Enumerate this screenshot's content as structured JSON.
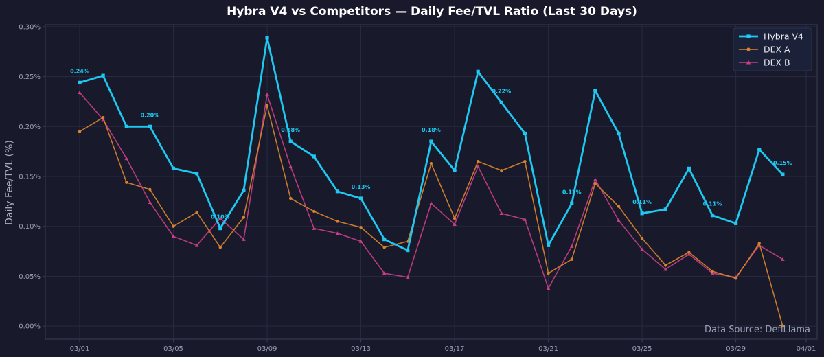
{
  "chart_data": {
    "type": "line",
    "title": "Hybra V4 vs Competitors — Daily Fee/TVL Ratio (Last 30 Days)",
    "xlabel": "",
    "ylabel": "Daily Fee/TVL (%)",
    "x_tick_labels": [
      "03/01",
      "03/05",
      "03/09",
      "03/13",
      "03/17",
      "03/21",
      "03/25",
      "03/29",
      "04/01"
    ],
    "y_tick_labels": [
      "0.00%",
      "0.05%",
      "0.10%",
      "0.15%",
      "0.20%",
      "0.25%",
      "0.30%"
    ],
    "ylim": [
      -0.013,
      0.302
    ],
    "x_domain": [
      "03/01",
      "04/01"
    ],
    "grid": true,
    "legend_position": "top-right",
    "x": [
      "03/01",
      "03/02",
      "03/03",
      "03/04",
      "03/05",
      "03/06",
      "03/07",
      "03/08",
      "03/09",
      "03/10",
      "03/11",
      "03/12",
      "03/13",
      "03/14",
      "03/15",
      "03/16",
      "03/17",
      "03/18",
      "03/19",
      "03/20",
      "03/21",
      "03/22",
      "03/23",
      "03/24",
      "03/25",
      "03/26",
      "03/27",
      "03/28",
      "03/29",
      "03/30",
      "03/31"
    ],
    "series": [
      {
        "name": "DEX B",
        "color": "#c93e84",
        "marker": "triangle",
        "values": [
          0.234,
          0.207,
          0.168,
          0.124,
          0.09,
          0.081,
          0.108,
          0.087,
          0.232,
          0.16,
          0.098,
          0.093,
          0.085,
          0.053,
          0.049,
          0.123,
          0.102,
          0.16,
          0.113,
          0.107,
          0.038,
          0.08,
          0.147,
          0.106,
          0.077,
          0.057,
          0.072,
          0.053,
          0.049,
          0.081,
          0.067
        ]
      },
      {
        "name": "DEX A",
        "color": "#d9822b",
        "marker": "circle",
        "values": [
          0.195,
          0.209,
          0.144,
          0.137,
          0.1,
          0.114,
          0.079,
          0.109,
          0.221,
          0.128,
          0.115,
          0.105,
          0.099,
          0.079,
          0.085,
          0.163,
          0.108,
          0.165,
          0.156,
          0.165,
          0.053,
          0.067,
          0.143,
          0.12,
          0.088,
          0.061,
          0.074,
          0.055,
          0.048,
          0.083,
          0.0
        ]
      },
      {
        "name": "Hybra V4",
        "color": "#1ec8f0",
        "marker": "square",
        "values": [
          0.244,
          0.251,
          0.2,
          0.2,
          0.158,
          0.153,
          0.098,
          0.136,
          0.289,
          0.185,
          0.17,
          0.135,
          0.128,
          0.087,
          0.076,
          0.185,
          0.156,
          0.255,
          0.224,
          0.193,
          0.081,
          0.123,
          0.236,
          0.193,
          0.113,
          0.117,
          0.158,
          0.111,
          0.103,
          0.177,
          0.152
        ]
      }
    ],
    "legend_order": [
      "Hybra V4",
      "DEX A",
      "DEX B"
    ],
    "annotations": [
      {
        "x": "03/01",
        "value": 0.244,
        "text": "0.24%"
      },
      {
        "x": "03/04",
        "value": 0.2,
        "text": "0.20%"
      },
      {
        "x": "03/07",
        "value": 0.098,
        "text": "0.10%"
      },
      {
        "x": "03/10",
        "value": 0.185,
        "text": "0.18%"
      },
      {
        "x": "03/13",
        "value": 0.128,
        "text": "0.13%"
      },
      {
        "x": "03/16",
        "value": 0.185,
        "text": "0.18%"
      },
      {
        "x": "03/19",
        "value": 0.224,
        "text": "0.22%"
      },
      {
        "x": "03/22",
        "value": 0.123,
        "text": "0.12%"
      },
      {
        "x": "03/25",
        "value": 0.113,
        "text": "0.11%"
      },
      {
        "x": "03/28",
        "value": 0.111,
        "text": "0.11%"
      },
      {
        "x": "03/31",
        "value": 0.152,
        "text": "0.15%"
      }
    ],
    "source_note": "Data Source: DefiLlama"
  },
  "theme": {
    "background": "#181a2c",
    "plot_background": "#181a2c",
    "grid_color": "#272a40",
    "axis_color": "#3a3e56",
    "legend_background": "#1b2138"
  }
}
